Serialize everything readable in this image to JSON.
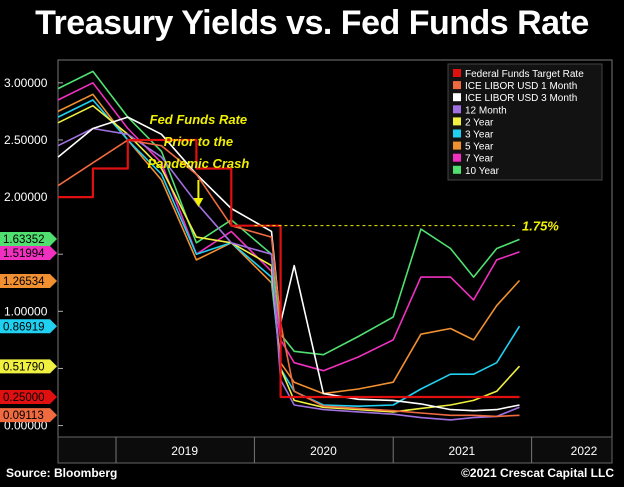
{
  "title": "Treasury Yields vs. Fed Funds Rate",
  "source": "Source: Bloomberg",
  "copyright": "©2021 Crescat Capital LLC",
  "colors": {
    "fed_funds": "#e01010",
    "libor1m": "#f06a40",
    "libor3m": "#ffffff",
    "m12": "#a070e0",
    "y2": "#f0f040",
    "y3": "#20d0f0",
    "y5": "#f09030",
    "y7": "#f030c0",
    "y10": "#50e070",
    "annotation": "#f0f000"
  },
  "chart_data": {
    "type": "line",
    "ylim": [
      -0.1,
      3.2
    ],
    "xlim": [
      "2018-08-01",
      "2022-08-01"
    ],
    "x_ticks": [
      "2019",
      "2020",
      "2021",
      "2022"
    ],
    "y_ticks": [
      "0.00000",
      "0.50000",
      "1.00000",
      "1.50000",
      "2.00000",
      "2.50000",
      "3.00000"
    ],
    "grid": false,
    "legend_position": "top-right",
    "dates": [
      "2018-08-01",
      "2018-11-01",
      "2019-02-01",
      "2019-05-01",
      "2019-08-01",
      "2019-11-01",
      "2020-02-15",
      "2020-03-10",
      "2020-04-15",
      "2020-07-01",
      "2020-10-01",
      "2021-01-01",
      "2021-03-15",
      "2021-06-01",
      "2021-08-01",
      "2021-10-01",
      "2021-11-30"
    ],
    "series": [
      {
        "name": "Federal Funds Target Rate",
        "key": "fed_funds",
        "step": true,
        "values": [
          2.0,
          2.25,
          2.5,
          2.5,
          2.25,
          1.75,
          1.75,
          0.25,
          0.25,
          0.25,
          0.25,
          0.25,
          0.25,
          0.25,
          0.25,
          0.25,
          0.25
        ]
      },
      {
        "name": "ICE LIBOR USD 1 Month",
        "key": "libor1m",
        "values": [
          2.1,
          2.3,
          2.5,
          2.45,
          2.2,
          1.75,
          1.65,
          0.9,
          0.3,
          0.17,
          0.15,
          0.13,
          0.11,
          0.09,
          0.09,
          0.08,
          0.09
        ]
      },
      {
        "name": "ICE LIBOR USD 3 Month",
        "key": "libor3m",
        "values": [
          2.35,
          2.6,
          2.7,
          2.55,
          2.2,
          1.9,
          1.7,
          0.9,
          1.4,
          0.28,
          0.23,
          0.22,
          0.19,
          0.14,
          0.13,
          0.14,
          0.18
        ]
      },
      {
        "name": "12 Month",
        "key": "m12",
        "values": [
          2.45,
          2.6,
          2.55,
          2.35,
          1.95,
          1.6,
          1.5,
          0.4,
          0.18,
          0.14,
          0.12,
          0.1,
          0.07,
          0.05,
          0.07,
          0.08,
          0.16
        ]
      },
      {
        "name": "2 Year",
        "key": "y2",
        "values": [
          2.65,
          2.8,
          2.55,
          2.25,
          1.65,
          1.6,
          1.4,
          0.5,
          0.22,
          0.16,
          0.14,
          0.12,
          0.15,
          0.18,
          0.22,
          0.3,
          0.52
        ]
      },
      {
        "name": "3 Year",
        "key": "y3",
        "values": [
          2.7,
          2.85,
          2.5,
          2.2,
          1.5,
          1.6,
          1.3,
          0.5,
          0.3,
          0.18,
          0.17,
          0.18,
          0.32,
          0.45,
          0.45,
          0.55,
          0.87
        ]
      },
      {
        "name": "5 Year",
        "key": "y5",
        "values": [
          2.75,
          2.9,
          2.5,
          2.15,
          1.45,
          1.6,
          1.25,
          0.55,
          0.38,
          0.28,
          0.32,
          0.38,
          0.8,
          0.85,
          0.75,
          1.05,
          1.27
        ]
      },
      {
        "name": "7 Year",
        "key": "y7",
        "values": [
          2.85,
          3.0,
          2.6,
          2.3,
          1.5,
          1.7,
          1.35,
          0.75,
          0.55,
          0.48,
          0.6,
          0.75,
          1.3,
          1.3,
          1.1,
          1.45,
          1.52
        ]
      },
      {
        "name": "10 Year",
        "key": "y10",
        "values": [
          2.95,
          3.1,
          2.7,
          2.4,
          1.6,
          1.8,
          1.5,
          0.8,
          0.65,
          0.62,
          0.78,
          0.95,
          1.72,
          1.55,
          1.3,
          1.55,
          1.63
        ]
      }
    ],
    "end_labels": [
      {
        "label": "1.63352",
        "value": 1.63352,
        "key": "y10"
      },
      {
        "label": "1.51994",
        "value": 1.51994,
        "key": "y7"
      },
      {
        "label": "1.26534",
        "value": 1.26534,
        "key": "y5"
      },
      {
        "label": "0.86919",
        "value": 0.86919,
        "key": "y3"
      },
      {
        "label": "0.51790",
        "value": 0.5179,
        "key": "y2"
      },
      {
        "label": "0.25000",
        "value": 0.25,
        "key": "fed_funds"
      },
      {
        "label": "0.09113",
        "value": 0.09113,
        "key": "libor1m"
      }
    ],
    "annotations": [
      {
        "text": "Fed Funds Rate",
        "date": "2019-08-01",
        "line": 1
      },
      {
        "text": "Prior to the",
        "date": "2019-08-01",
        "line": 2
      },
      {
        "text": "Pandemic Crash",
        "date": "2019-08-01",
        "line": 3
      },
      {
        "text": "1.75%",
        "value": 1.75
      }
    ]
  }
}
